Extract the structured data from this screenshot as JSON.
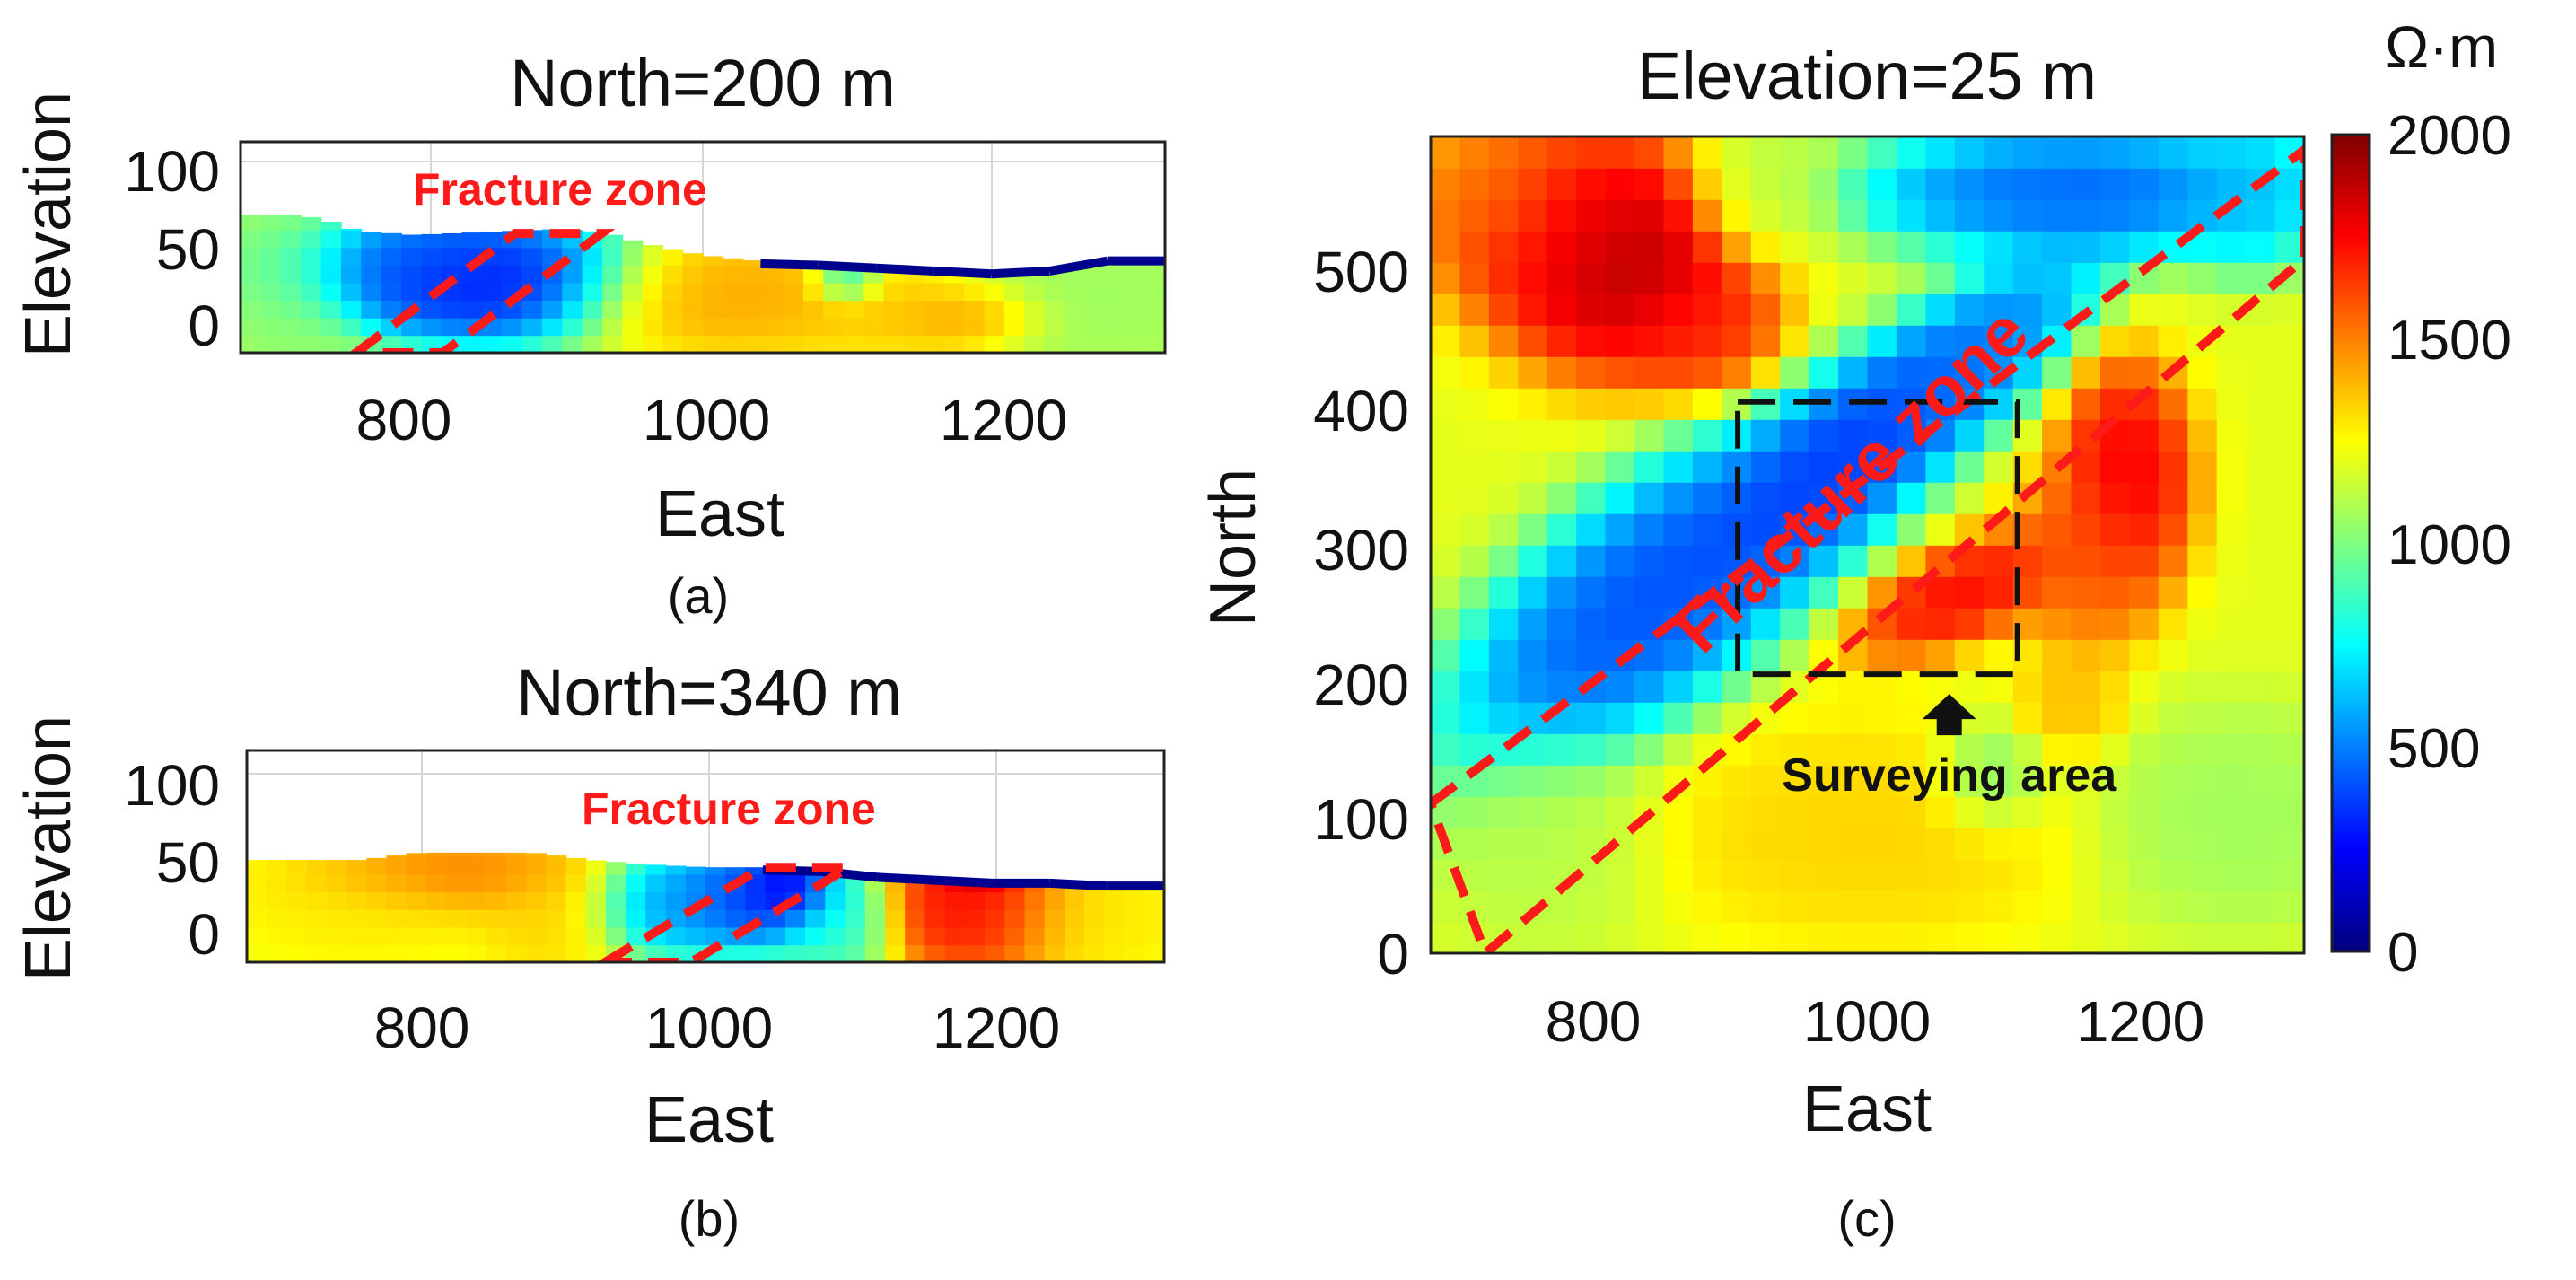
{
  "colorbar": {
    "unit": "Ω·m",
    "min": 0,
    "max": 2000,
    "ticks": [
      0,
      500,
      1000,
      1500,
      2000
    ],
    "colormap": "jet"
  },
  "chart_data": [
    {
      "id": "a",
      "type": "heatmap",
      "title": "North=200 m",
      "caption": "(a)",
      "xlabel": "East",
      "ylabel": "Elevation",
      "xlim": [
        680,
        1320
      ],
      "ylim": [
        -20,
        125
      ],
      "xticks": [
        800,
        1000,
        1200
      ],
      "yticks": [
        0,
        50,
        100
      ],
      "annotation": "Fracture zone",
      "surface": [
        [
          680,
          75
        ],
        [
          720,
          75
        ],
        [
          740,
          71
        ],
        [
          760,
          64
        ],
        [
          800,
          61
        ],
        [
          850,
          63
        ],
        [
          900,
          65
        ],
        [
          930,
          63
        ],
        [
          960,
          55
        ],
        [
          1000,
          47
        ],
        [
          1040,
          43
        ],
        [
          1080,
          42
        ],
        [
          1120,
          40
        ],
        [
          1160,
          38
        ],
        [
          1200,
          36
        ],
        [
          1240,
          38
        ],
        [
          1280,
          45
        ],
        [
          1320,
          45
        ]
      ],
      "fracture_zone": [
        [
          760,
          -20
        ],
        [
          870,
          62
        ],
        [
          930,
          62
        ],
        [
          820,
          -20
        ]
      ],
      "anomalies": [
        {
          "x": 850,
          "y": 30,
          "value": 150,
          "rx": 75,
          "ry": 30
        },
        {
          "x": 800,
          "y": 40,
          "value": 420,
          "rx": 70,
          "ry": 25
        },
        {
          "x": 710,
          "y": 30,
          "value": 1000,
          "rx": 40,
          "ry": 50
        },
        {
          "x": 1020,
          "y": 20,
          "value": 1450,
          "rx": 85,
          "ry": 30
        },
        {
          "x": 1100,
          "y": 30,
          "value": 600,
          "rx": 18,
          "ry": 12
        },
        {
          "x": 1140,
          "y": 10,
          "value": 1350,
          "rx": 60,
          "ry": 25
        },
        {
          "x": 1180,
          "y": 5,
          "value": 1500,
          "rx": 40,
          "ry": 15
        },
        {
          "x": 1270,
          "y": 20,
          "value": 1050,
          "rx": 70,
          "ry": 40
        }
      ],
      "base_value": 1150
    },
    {
      "id": "b",
      "type": "heatmap",
      "title": "North=340 m",
      "caption": "(b)",
      "xlabel": "East",
      "ylabel": "Elevation",
      "xlim": [
        680,
        1320
      ],
      "ylim": [
        -20,
        125
      ],
      "xticks": [
        800,
        1000,
        1200
      ],
      "yticks": [
        0,
        50,
        100
      ],
      "annotation": "Fracture zone",
      "surface": [
        [
          680,
          50
        ],
        [
          720,
          50
        ],
        [
          760,
          50
        ],
        [
          800,
          55
        ],
        [
          880,
          55
        ],
        [
          920,
          50
        ],
        [
          960,
          47
        ],
        [
          1000,
          45
        ],
        [
          1040,
          45
        ],
        [
          1080,
          44
        ],
        [
          1120,
          40
        ],
        [
          1160,
          38
        ],
        [
          1200,
          36
        ],
        [
          1240,
          36
        ],
        [
          1280,
          34
        ],
        [
          1320,
          34
        ]
      ],
      "fracture_zone": [
        [
          930,
          -20
        ],
        [
          1040,
          45
        ],
        [
          1100,
          45
        ],
        [
          990,
          -20
        ]
      ],
      "anomalies": [
        {
          "x": 820,
          "y": 40,
          "value": 1550,
          "rx": 70,
          "ry": 20
        },
        {
          "x": 760,
          "y": 20,
          "value": 1300,
          "rx": 70,
          "ry": 30
        },
        {
          "x": 890,
          "y": 15,
          "value": 1350,
          "rx": 40,
          "ry": 30
        },
        {
          "x": 980,
          "y": 20,
          "value": 500,
          "rx": 45,
          "ry": 25
        },
        {
          "x": 1040,
          "y": 25,
          "value": 200,
          "rx": 45,
          "ry": 25
        },
        {
          "x": 1060,
          "y": 30,
          "value": 100,
          "rx": 20,
          "ry": 15
        },
        {
          "x": 1090,
          "y": 10,
          "value": 800,
          "rx": 30,
          "ry": 30
        },
        {
          "x": 1190,
          "y": 20,
          "value": 1800,
          "rx": 50,
          "ry": 35
        },
        {
          "x": 1190,
          "y": 40,
          "value": 2000,
          "rx": 20,
          "ry": 10
        },
        {
          "x": 1270,
          "y": 10,
          "value": 1300,
          "rx": 50,
          "ry": 30
        }
      ],
      "base_value": 1200
    },
    {
      "id": "c",
      "type": "heatmap",
      "title": "Elevation=25 m",
      "caption": "(c)",
      "xlabel": "East",
      "ylabel": "North",
      "xlim": [
        680,
        1320
      ],
      "ylim": [
        0,
        600
      ],
      "xticks": [
        800,
        1000,
        1200
      ],
      "yticks": [
        0,
        100,
        200,
        300,
        400,
        500
      ],
      "annotation": "Fracture zone",
      "survey_label": "Surveying area",
      "survey_box": {
        "x0": 905,
        "x1": 1110,
        "y0": 205,
        "y1": 405
      },
      "fracture_zone": [
        [
          680,
          110
        ],
        [
          1320,
          590
        ],
        [
          1320,
          510
        ],
        [
          720,
          0
        ]
      ],
      "anomalies": [
        {
          "x": 820,
          "y": 510,
          "value": 2000,
          "rx": 70,
          "ry": 60
        },
        {
          "x": 760,
          "y": 540,
          "value": 1700,
          "rx": 60,
          "ry": 50
        },
        {
          "x": 720,
          "y": 560,
          "value": 1500,
          "rx": 40,
          "ry": 35
        },
        {
          "x": 880,
          "y": 460,
          "value": 1700,
          "rx": 40,
          "ry": 35
        },
        {
          "x": 920,
          "y": 560,
          "value": 1100,
          "rx": 40,
          "ry": 40
        },
        {
          "x": 1150,
          "y": 560,
          "value": 350,
          "rx": 110,
          "ry": 35
        },
        {
          "x": 1280,
          "y": 560,
          "value": 600,
          "rx": 40,
          "ry": 40
        },
        {
          "x": 840,
          "y": 260,
          "value": 300,
          "rx": 130,
          "ry": 55,
          "rot": -40
        },
        {
          "x": 990,
          "y": 370,
          "value": 250,
          "rx": 110,
          "ry": 38,
          "rot": -40
        },
        {
          "x": 1080,
          "y": 440,
          "value": 450,
          "rx": 80,
          "ry": 30,
          "rot": -40
        },
        {
          "x": 1190,
          "y": 350,
          "value": 1850,
          "rx": 35,
          "ry": 60
        },
        {
          "x": 1070,
          "y": 265,
          "value": 1800,
          "rx": 60,
          "ry": 25,
          "rot": -25
        },
        {
          "x": 1160,
          "y": 290,
          "value": 1600,
          "rx": 40,
          "ry": 50
        },
        {
          "x": 1150,
          "y": 180,
          "value": 1400,
          "rx": 30,
          "ry": 25
        },
        {
          "x": 1000,
          "y": 90,
          "value": 1350,
          "rx": 110,
          "ry": 60
        },
        {
          "x": 1090,
          "y": 130,
          "value": 950,
          "rx": 30,
          "ry": 30
        },
        {
          "x": 1270,
          "y": 100,
          "value": 1050,
          "rx": 80,
          "ry": 60
        },
        {
          "x": 760,
          "y": 80,
          "value": 1100,
          "rx": 60,
          "ry": 60
        }
      ],
      "base_value": 1200
    }
  ]
}
